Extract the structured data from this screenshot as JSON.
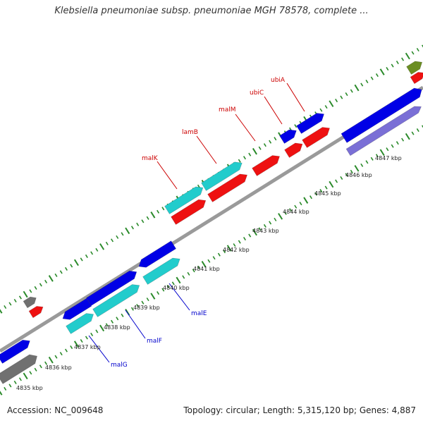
{
  "title": "Klebsiella pneumoniae subsp. pneumoniae MGH 78578, complete ...",
  "footer": {
    "accession": "Accession: NC_009648",
    "summary": "Topology: circular; Length: 5,315,120 bp; Genes: 4,887"
  },
  "colors": {
    "backbone": "#9a9a9a",
    "tick": "#2a8a2a",
    "label_red": "#cc0000",
    "label_blue": "#0000cc",
    "gene_blue": "#0000e6",
    "gene_cyan": "#22cccc",
    "gene_red": "#ee1111",
    "gene_lavender": "#7a6fd6",
    "gene_gray": "#707070",
    "gene_olive": "#6b8e23"
  },
  "ruler_labels": [
    "4835 kbp",
    "4836 kbp",
    "4837 kbp",
    "4838 kbp",
    "4839 kbp",
    "4840 kbp",
    "4841 kbp",
    "4842 kbp",
    "4843 kbp",
    "4844 kbp",
    "4845 kbp",
    "4846 kbp",
    "4847 kbp"
  ],
  "gene_labels": [
    {
      "text": "ubiA",
      "color": "red"
    },
    {
      "text": "ubiC",
      "color": "red"
    },
    {
      "text": "malM",
      "color": "red"
    },
    {
      "text": "lamB",
      "color": "red"
    },
    {
      "text": "malK",
      "color": "red"
    },
    {
      "text": "malE",
      "color": "blue"
    },
    {
      "text": "malF",
      "color": "blue"
    },
    {
      "text": "malG",
      "color": "blue"
    }
  ]
}
